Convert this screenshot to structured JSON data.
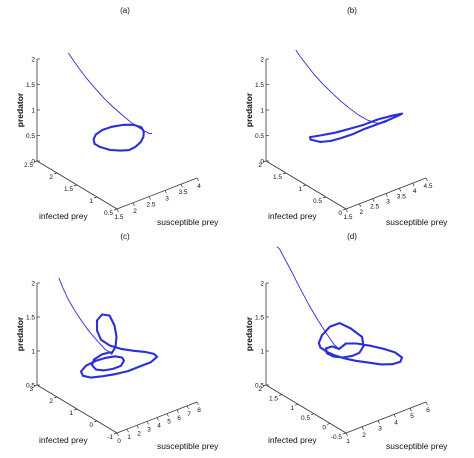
{
  "chart_data": [
    {
      "type": "line",
      "panel_label": "(a)",
      "xlabel": "susceptible prey",
      "ylabel": "infected prey",
      "zlabel": "predator",
      "x_ticks": [
        "1.5",
        "2",
        "2.5",
        "3",
        "3.5",
        "4"
      ],
      "y_ticks": [
        "0.5",
        "1",
        "1.5",
        "2",
        "2.5"
      ],
      "z_ticks": [
        "0",
        "0.5",
        "1",
        "1.5",
        "2"
      ],
      "xlim": [
        1.5,
        4
      ],
      "ylim": [
        0.5,
        2.5
      ],
      "zlim": [
        0,
        2
      ],
      "series": [
        {
          "x": [
            2.3,
            2.33,
            2.37,
            2.42,
            2.48,
            2.55,
            2.63,
            2.72,
            2.82,
            2.92,
            3.02,
            3.1,
            3.17,
            3.22,
            3.25
          ],
          "y": [
            2.35,
            2.25,
            2.13,
            1.99,
            1.83,
            1.66,
            1.49,
            1.33,
            1.19,
            1.09,
            1.02,
            0.99,
            0.99,
            1.01,
            1.03
          ],
          "z": [
            1.35,
            1.28,
            1.2,
            1.11,
            1.02,
            0.93,
            0.85,
            0.78,
            0.71,
            0.66,
            0.62,
            0.59,
            0.57,
            0.56,
            0.55
          ]
        },
        {
          "x": [
            1.95,
            2.1,
            2.3,
            2.5,
            2.7,
            2.9,
            3.05,
            3.15,
            3.2,
            3.1,
            2.9,
            2.65,
            2.4,
            2.15,
            1.98,
            1.9,
            1.95
          ],
          "y": [
            1.3,
            1.15,
            1.05,
            1.0,
            1.0,
            1.03,
            1.08,
            1.15,
            1.25,
            1.37,
            1.47,
            1.55,
            1.58,
            1.55,
            1.47,
            1.38,
            1.3
          ],
          "z": [
            0.5,
            0.48,
            0.47,
            0.46,
            0.47,
            0.49,
            0.52,
            0.55,
            0.57,
            0.58,
            0.58,
            0.57,
            0.56,
            0.55,
            0.54,
            0.52,
            0.5
          ]
        }
      ]
    },
    {
      "type": "line",
      "panel_label": "(b)",
      "xlabel": "susceptible prey",
      "ylabel": "infected prey",
      "zlabel": "predator",
      "x_ticks": [
        "1.5",
        "2",
        "2.5",
        "3",
        "3.5",
        "4",
        "4.5"
      ],
      "y_ticks": [
        "0",
        "0.5",
        "1",
        "1.5",
        "2"
      ],
      "z_ticks": [
        "0",
        "0.5",
        "1",
        "1.5",
        "2"
      ],
      "xlim": [
        1.5,
        4.5
      ],
      "ylim": [
        0,
        2
      ],
      "zlim": [
        0,
        2
      ],
      "series": [
        {
          "x": [
            2.4,
            2.45,
            2.52,
            2.6,
            2.7,
            2.82,
            2.96,
            3.1,
            3.25,
            3.4,
            3.55,
            3.7,
            3.85,
            4.0
          ],
          "y": [
            1.85,
            1.77,
            1.67,
            1.55,
            1.42,
            1.28,
            1.14,
            1.0,
            0.86,
            0.74,
            0.65,
            0.59,
            0.56,
            0.55
          ],
          "z": [
            1.4,
            1.33,
            1.25,
            1.16,
            1.07,
            0.98,
            0.89,
            0.81,
            0.74,
            0.69,
            0.66,
            0.65,
            0.66,
            0.68
          ]
        },
        {
          "x": [
            2.05,
            2.2,
            2.45,
            2.75,
            3.05,
            3.35,
            3.65,
            3.95,
            4.25,
            4.35,
            4.1,
            3.75,
            3.4,
            3.05,
            2.7,
            2.35,
            2.1,
            2.05
          ],
          "y": [
            1.25,
            1.12,
            1.02,
            0.95,
            0.88,
            0.8,
            0.7,
            0.6,
            0.52,
            0.5,
            0.58,
            0.7,
            0.82,
            0.95,
            1.07,
            1.2,
            1.3,
            1.25
          ],
          "z": [
            0.45,
            0.44,
            0.45,
            0.47,
            0.5,
            0.55,
            0.6,
            0.65,
            0.7,
            0.72,
            0.7,
            0.66,
            0.6,
            0.55,
            0.51,
            0.48,
            0.46,
            0.45
          ]
        }
      ]
    },
    {
      "type": "line",
      "panel_label": "(c)",
      "xlabel": "susceptible prey",
      "ylabel": "infected prey",
      "zlabel": "predator",
      "x_ticks": [
        "0",
        "1",
        "2",
        "3",
        "4",
        "5",
        "6",
        "7",
        "8"
      ],
      "y_ticks": [
        "-1",
        "0",
        "1",
        "2",
        "3"
      ],
      "z_ticks": [
        "0.5",
        "1",
        "1.5",
        "2"
      ],
      "xlim": [
        0,
        8
      ],
      "ylim": [
        -1,
        3
      ],
      "zlim": [
        0.5,
        2
      ],
      "series": [
        {
          "x": [
            1.0,
            1.15,
            1.35,
            1.6,
            1.9,
            2.2,
            2.55,
            2.9,
            3.25
          ],
          "y": [
            2.4,
            2.3,
            2.15,
            1.95,
            1.72,
            1.48,
            1.25,
            1.05,
            0.9
          ],
          "z": [
            1.6,
            1.52,
            1.42,
            1.32,
            1.22,
            1.13,
            1.05,
            0.98,
            0.94
          ]
        },
        {
          "x": [
            3.25,
            3.55,
            3.85,
            4.15,
            4.35,
            4.2,
            3.9,
            3.6,
            3.4,
            3.55,
            4.0,
            4.7,
            5.4,
            5.9,
            6.1,
            5.6,
            4.8,
            3.9,
            3.0,
            2.2,
            1.6,
            1.3,
            1.5,
            2.1,
            2.8,
            3.3,
            3.6,
            3.7,
            3.5,
            3.0,
            2.4,
            1.9,
            1.6,
            1.7,
            2.2,
            2.9,
            3.4,
            3.25
          ],
          "y": [
            0.9,
            0.85,
            0.95,
            1.2,
            1.55,
            1.85,
            1.95,
            1.8,
            1.5,
            1.15,
            0.8,
            0.5,
            0.25,
            0.1,
            0.05,
            0.1,
            0.25,
            0.4,
            0.6,
            0.85,
            1.1,
            1.35,
            1.55,
            1.6,
            1.45,
            1.2,
            0.9,
            0.6,
            0.4,
            0.3,
            0.4,
            0.6,
            0.85,
            1.1,
            1.25,
            1.2,
            1.05,
            0.9
          ],
          "z": [
            0.94,
            1.0,
            1.08,
            1.15,
            1.2,
            1.18,
            1.12,
            1.05,
            1.0,
            0.98,
            0.97,
            0.96,
            0.95,
            0.93,
            0.9,
            0.86,
            0.83,
            0.8,
            0.78,
            0.76,
            0.74,
            0.74,
            0.75,
            0.78,
            0.82,
            0.86,
            0.9,
            0.92,
            0.92,
            0.9,
            0.88,
            0.86,
            0.85,
            0.86,
            0.88,
            0.91,
            0.93,
            0.94
          ]
        }
      ]
    },
    {
      "type": "line",
      "panel_label": "(d)",
      "xlabel": "susceptible prey",
      "ylabel": "infected prey",
      "zlabel": "predator",
      "x_ticks": [
        "1",
        "2",
        "3",
        "4",
        "5",
        "6"
      ],
      "y_ticks": [
        "-0.5",
        "0",
        "0.5",
        "1",
        "1.5",
        "2"
      ],
      "z_ticks": [
        "0.5",
        "1",
        "1.5",
        "2"
      ],
      "xlim": [
        1,
        6
      ],
      "ylim": [
        -0.5,
        2
      ],
      "zlim": [
        0.5,
        2
      ],
      "series": [
        {
          "x": [
            1.3,
            1.4,
            1.55,
            1.75,
            2.0,
            2.25,
            2.5,
            2.75,
            3.0,
            3.2
          ],
          "y": [
            1.8,
            1.78,
            1.72,
            1.6,
            1.45,
            1.28,
            1.12,
            0.98,
            0.88,
            0.82
          ],
          "z": [
            1.9,
            1.88,
            1.8,
            1.68,
            1.52,
            1.36,
            1.22,
            1.1,
            1.0,
            0.95
          ]
        },
        {
          "x": [
            3.2,
            3.5,
            3.9,
            4.4,
            4.9,
            5.3,
            5.5,
            5.3,
            4.9,
            4.4,
            3.9,
            3.4,
            3.0,
            2.7,
            2.5,
            2.4,
            2.5,
            2.8,
            3.2,
            3.6,
            4.0,
            4.4,
            4.2,
            3.8,
            3.4,
            3.0,
            2.7,
            2.6,
            2.75,
            3.05,
            3.2
          ],
          "y": [
            0.82,
            0.75,
            0.62,
            0.45,
            0.28,
            0.12,
            0.0,
            -0.05,
            0.0,
            0.1,
            0.25,
            0.4,
            0.55,
            0.7,
            0.85,
            1.0,
            1.1,
            1.15,
            1.1,
            1.0,
            0.85,
            0.7,
            0.55,
            0.48,
            0.5,
            0.6,
            0.75,
            0.9,
            1.0,
            0.95,
            0.82
          ],
          "z": [
            0.95,
            1.0,
            1.0,
            0.98,
            0.95,
            0.92,
            0.88,
            0.86,
            0.85,
            0.86,
            0.88,
            0.9,
            0.92,
            0.94,
            0.96,
            0.98,
            1.0,
            1.05,
            1.12,
            1.15,
            1.1,
            1.02,
            0.97,
            0.94,
            0.93,
            0.92,
            0.92,
            0.93,
            0.95,
            0.96,
            0.95
          ]
        }
      ]
    }
  ]
}
